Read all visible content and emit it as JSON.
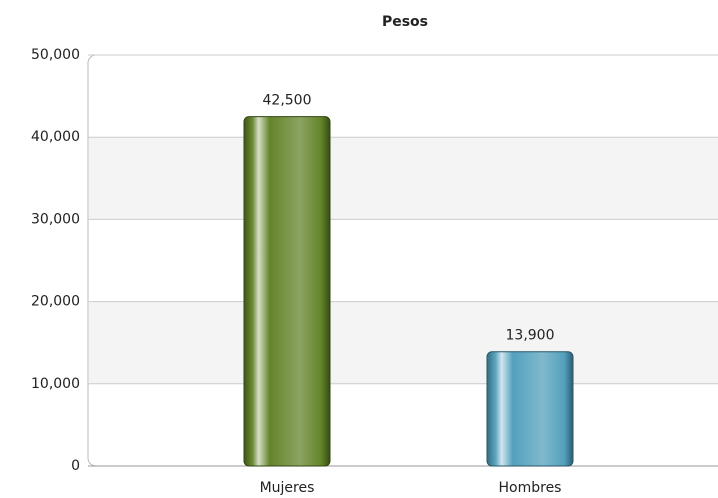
{
  "chart_data": {
    "type": "bar",
    "title": "Pesos",
    "categories": [
      "Mujeres",
      "Hombres"
    ],
    "values": [
      42500,
      13900
    ],
    "value_labels": [
      "42,500",
      "13,900"
    ],
    "colors": [
      "#5b7d1f",
      "#4a9bb9"
    ],
    "ylim": [
      0,
      50000
    ],
    "yticks": [
      0,
      {
        "value": 10000,
        "label": "10,000"
      },
      {
        "value": 20000,
        "label": "20,000"
      },
      {
        "value": 30000,
        "label": "30,000"
      },
      {
        "value": 40000,
        "label": "40,000"
      },
      {
        "value": 50000,
        "label": "50,000"
      }
    ],
    "grid": true
  }
}
